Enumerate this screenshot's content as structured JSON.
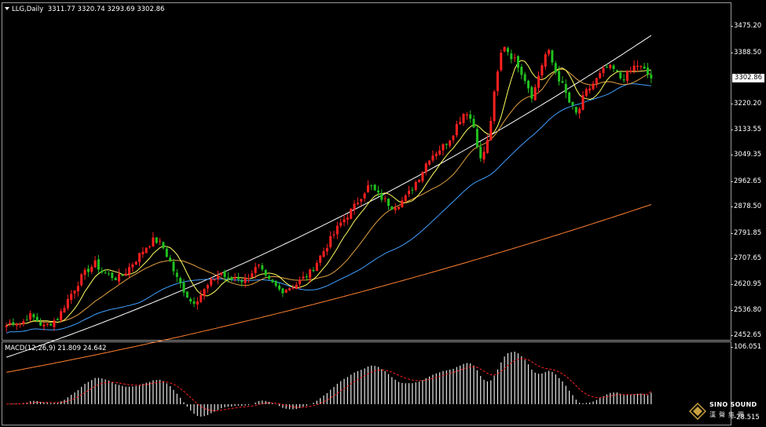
{
  "header": {
    "symbol": "LLG,Daily",
    "ohlc": "3311.77 3320.74 3293.69 3302.86"
  },
  "macd": {
    "label": "MACD(12,26,9) 21.809 24.642",
    "max_label": "106.051",
    "min_label": "-28.515"
  },
  "price_axis": {
    "ticks": [
      "3475.20",
      "3388.50",
      "3220.20",
      "3133.55",
      "3049.35",
      "2962.65",
      "2878.50",
      "2791.85",
      "2707.65",
      "2620.95",
      "2536.80",
      "2452.65"
    ],
    "last_price": "3302.86"
  },
  "logo": {
    "brand": "SINO SOUND",
    "cn": "漢聲集團"
  },
  "colors": {
    "bull": "#ff2020",
    "bear": "#20c020",
    "ma_fast": "#ffff60",
    "ma_mid": "#e0a040",
    "ma_blue": "#40a0ff",
    "ma_white": "#ffffff",
    "ma_orange": "#ff8030",
    "signal": "#ff2020",
    "frame": "#9a9a9a"
  },
  "chart_data": {
    "type": "candlestick",
    "symbol": "LLG",
    "timeframe": "Daily",
    "ylim": [
      2440,
      3510
    ],
    "close_path": [
      2485,
      2500,
      2490,
      2520,
      2505,
      2480,
      2495,
      2510,
      2560,
      2600,
      2640,
      2670,
      2690,
      2660,
      2650,
      2640,
      2660,
      2690,
      2720,
      2750,
      2770,
      2750,
      2700,
      2640,
      2600,
      2560,
      2580,
      2610,
      2640,
      2660,
      2630,
      2650,
      2630,
      2660,
      2680,
      2640,
      2620,
      2600,
      2610,
      2620,
      2640,
      2660,
      2700,
      2740,
      2780,
      2820,
      2850,
      2880,
      2920,
      2950,
      2920,
      2900,
      2880,
      2890,
      2910,
      2950,
      2990,
      3040,
      3060,
      3080,
      3110,
      3160,
      3200,
      3150,
      3030,
      3100,
      3280,
      3420,
      3380,
      3350,
      3300,
      3240,
      3330,
      3400,
      3330,
      3280,
      3220,
      3180,
      3250,
      3280,
      3310,
      3340,
      3330,
      3300,
      3320,
      3350,
      3330,
      3302.86
    ],
    "macd_range": [
      -28.515,
      106.051
    ]
  }
}
